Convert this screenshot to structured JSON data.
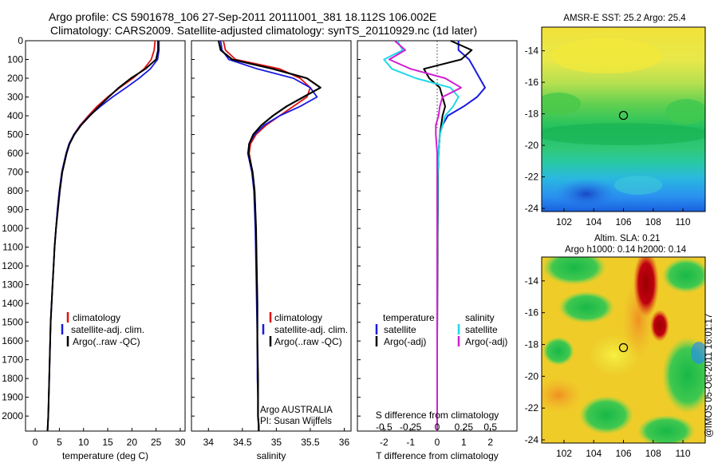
{
  "header": {
    "title_line1": "Argo profile: CS 5901678_106 27-Sep-2011 20111001_381 18.112S 106.002E",
    "title_line2": "Climatology: CARS2009. Satellite-adjusted climatology: synTS_20110929.nc (1d later)"
  },
  "colors": {
    "climatology": "#e01010",
    "satellite": "#1a1ae0",
    "argo": "#000000",
    "satellite_salinity": "#20d8e8",
    "argo_salinity_adj": "#d020d0"
  },
  "chart_data": [
    {
      "type": "line",
      "name": "temperature-profile",
      "xlabel": "temperature (deg C)",
      "ylabel": "",
      "xlim": [
        -2,
        31
      ],
      "ylim": [
        2080,
        0
      ],
      "xticks": [
        0,
        5,
        10,
        15,
        20,
        25,
        30
      ],
      "yticks": [
        0,
        100,
        200,
        300,
        400,
        500,
        600,
        700,
        800,
        900,
        1000,
        1100,
        1200,
        1300,
        1400,
        1500,
        1600,
        1700,
        1800,
        1900,
        2000
      ],
      "legend_labels": [
        "climatology",
        "satellite-adj. clim.",
        "Argo(..raw -QC)"
      ],
      "series": [
        {
          "name": "climatology",
          "color": "#e01010",
          "x": [
            24.8,
            24.6,
            24.0,
            22.5,
            20.2,
            17.5,
            15.0,
            12.8,
            11.0,
            9.3,
            8.0,
            7.0,
            6.4,
            5.5,
            5.0,
            4.6,
            4.3,
            4.0,
            3.8,
            3.6,
            3.4,
            3.2,
            3.1,
            3.0,
            2.9,
            2.8,
            2.75,
            2.7,
            2.6,
            2.55
          ],
          "depth": [
            0,
            50,
            100,
            150,
            200,
            250,
            300,
            350,
            400,
            450,
            500,
            550,
            600,
            700,
            800,
            900,
            1000,
            1100,
            1200,
            1300,
            1400,
            1500,
            1600,
            1700,
            1800,
            1900,
            1950,
            2000,
            2050,
            2080
          ]
        },
        {
          "name": "satellite",
          "color": "#1a1ae0",
          "x": [
            25.6,
            25.6,
            25.3,
            23.8,
            21.5,
            18.8,
            16.0,
            13.5,
            11.2,
            9.4,
            8.0,
            7.0,
            6.4,
            5.5,
            5.0,
            4.6,
            4.3,
            4.0,
            3.8,
            3.6,
            3.4,
            3.2,
            3.1,
            3.0,
            2.9,
            2.8,
            2.75,
            2.7,
            2.6,
            2.55
          ],
          "depth": [
            0,
            50,
            100,
            150,
            200,
            250,
            300,
            350,
            400,
            450,
            500,
            550,
            600,
            700,
            800,
            900,
            1000,
            1100,
            1200,
            1300,
            1400,
            1500,
            1600,
            1700,
            1800,
            1900,
            1950,
            2000,
            2050,
            2080
          ]
        },
        {
          "name": "argo",
          "color": "#000000",
          "x": [
            25.4,
            25.4,
            25.0,
            22.8,
            19.8,
            17.3,
            15.2,
            13.2,
            11.3,
            9.5,
            8.1,
            7.1,
            6.5,
            5.6,
            5.1,
            4.7,
            4.3,
            4.0,
            3.8,
            3.6,
            3.4,
            3.2,
            3.1,
            3.0,
            2.9,
            2.8,
            2.75,
            2.7,
            2.6,
            2.55
          ],
          "depth": [
            0,
            50,
            100,
            150,
            200,
            250,
            300,
            350,
            400,
            450,
            500,
            550,
            600,
            700,
            800,
            900,
            1000,
            1100,
            1200,
            1300,
            1400,
            1500,
            1600,
            1700,
            1800,
            1900,
            1950,
            2000,
            2050,
            2080
          ]
        }
      ]
    },
    {
      "type": "line",
      "name": "salinity-profile",
      "xlabel": "salinity",
      "ylabel": "",
      "xlim": [
        33.75,
        36.1
      ],
      "ylim": [
        2080,
        0
      ],
      "xticks": [
        34,
        34.5,
        35,
        35.5,
        36
      ],
      "legend_labels": [
        "climatology",
        "satellite-adj. clim.",
        "Argo(..raw -QC)"
      ],
      "annotation": [
        "Argo AUSTRALIA",
        "PI: Susan Wijffels"
      ],
      "series": [
        {
          "name": "climatology",
          "color": "#e01010",
          "x": [
            34.22,
            34.25,
            34.4,
            35.05,
            35.35,
            35.5,
            35.45,
            35.25,
            35.05,
            34.85,
            34.7,
            34.62,
            34.6,
            34.65,
            34.68,
            34.7,
            34.71,
            34.72,
            34.72,
            34.73,
            34.73,
            34.73,
            34.74,
            34.74
          ],
          "depth": [
            0,
            50,
            100,
            150,
            200,
            250,
            300,
            350,
            400,
            450,
            500,
            550,
            600,
            700,
            800,
            1000,
            1200,
            1400,
            1600,
            1800,
            1900,
            2000,
            2050,
            2080
          ]
        },
        {
          "name": "satellite",
          "color": "#1a1ae0",
          "x": [
            34.18,
            34.2,
            34.3,
            34.72,
            35.25,
            35.5,
            35.6,
            35.35,
            35.05,
            34.82,
            34.68,
            34.6,
            34.58,
            34.64,
            34.67,
            34.69,
            34.7,
            34.71,
            34.72,
            34.72,
            34.73,
            34.73,
            34.74,
            34.74
          ],
          "depth": [
            0,
            50,
            100,
            150,
            200,
            250,
            300,
            350,
            400,
            450,
            500,
            550,
            600,
            700,
            800,
            1000,
            1200,
            1400,
            1600,
            1800,
            1900,
            2000,
            2050,
            2080
          ]
        },
        {
          "name": "argo",
          "color": "#000000",
          "x": [
            34.15,
            34.18,
            34.35,
            34.95,
            35.45,
            35.65,
            35.4,
            35.15,
            34.95,
            34.78,
            34.66,
            34.6,
            34.59,
            34.65,
            34.68,
            34.7,
            34.71,
            34.72,
            34.72,
            34.73,
            34.73,
            34.73,
            34.74,
            34.74
          ],
          "depth": [
            0,
            50,
            100,
            150,
            200,
            250,
            300,
            350,
            400,
            450,
            500,
            550,
            600,
            700,
            800,
            1000,
            1200,
            1400,
            1600,
            1800,
            1900,
            2000,
            2050,
            2080
          ]
        }
      ]
    },
    {
      "type": "line",
      "name": "difference-profile",
      "xlabel": "T difference from climatology",
      "xlabel_top": "S difference from climatology",
      "xticks_T": [
        -2,
        -1,
        0,
        1,
        2
      ],
      "xticks_S": [
        -0.5,
        -0.25,
        0,
        0.25,
        0.5
      ],
      "xlim_T": [
        -3,
        3
      ],
      "ylim": [
        2080,
        0
      ],
      "legend": {
        "temperature_heading": "temperature",
        "salinity_heading": "salinity",
        "temperature_items": [
          "satellite",
          "Argo(-adj)"
        ],
        "salinity_items": [
          "satellite",
          "Argo(-adj)"
        ]
      },
      "series": [
        {
          "name": "T satellite",
          "color": "#1a1ae0",
          "x": [
            0.8,
            0.8,
            1.2,
            1.4,
            1.6,
            1.8,
            1.5,
            1.0,
            0.4,
            0.2,
            0.1,
            0.05,
            0.03,
            0.02,
            0.01,
            0.0,
            0.0
          ],
          "depth": [
            0,
            50,
            100,
            150,
            200,
            250,
            300,
            350,
            400,
            450,
            500,
            600,
            700,
            900,
            1200,
            1600,
            2080
          ]
        },
        {
          "name": "T Argo",
          "color": "#000000",
          "x": [
            0.5,
            1.3,
            0.9,
            -0.5,
            -0.3,
            0.1,
            0.2,
            0.3,
            0.2,
            0.15,
            0.1,
            0.05,
            0.03,
            0.02,
            0.01,
            0.0,
            0.0
          ],
          "depth": [
            0,
            50,
            100,
            150,
            200,
            250,
            300,
            350,
            400,
            450,
            500,
            600,
            700,
            900,
            1200,
            1600,
            2080
          ]
        },
        {
          "name": "S satellite",
          "color": "#20d8e8",
          "x": [
            -1.5,
            -1.3,
            -2.0,
            -1.7,
            -0.8,
            0.5,
            0.8,
            0.6,
            0.3,
            0.2,
            0.1,
            0.05,
            0.02,
            0.01,
            0.0,
            0.0,
            0.0
          ],
          "depth": [
            0,
            50,
            100,
            150,
            200,
            250,
            300,
            350,
            400,
            450,
            500,
            600,
            700,
            900,
            1200,
            1600,
            2080
          ]
        },
        {
          "name": "S Argo",
          "color": "#d020d0",
          "x": [
            -1.6,
            -1.2,
            -1.8,
            -1.0,
            0.3,
            0.9,
            0.2,
            0.1,
            0.05,
            -0.05,
            -0.05,
            0.0,
            0.0,
            0.0,
            0.0,
            0.0,
            0.0
          ],
          "depth": [
            0,
            50,
            100,
            150,
            200,
            250,
            300,
            350,
            400,
            450,
            500,
            600,
            700,
            900,
            1200,
            1600,
            2080
          ]
        }
      ]
    },
    {
      "type": "heatmap",
      "name": "sst-map",
      "title": "AMSR-E SST: 25.2 Argo: 25.4",
      "xlim": [
        100.5,
        111.5
      ],
      "ylim": [
        -24.2,
        -12.5
      ],
      "xticks": [
        102,
        104,
        106,
        108,
        110
      ],
      "yticks": [
        -14,
        -16,
        -18,
        -20,
        -22,
        -24
      ],
      "marker": {
        "lon": 106.0,
        "lat": -18.1
      }
    },
    {
      "type": "heatmap",
      "name": "sla-map",
      "title_line1": "Altim. SLA: 0.21",
      "title_line2": "Argo h1000: 0.14 h2000: 0.14",
      "xlim": [
        100.5,
        111.5
      ],
      "ylim": [
        -24.2,
        -12.5
      ],
      "xticks": [
        102,
        104,
        106,
        108,
        110
      ],
      "yticks": [
        -14,
        -16,
        -18,
        -20,
        -22,
        -24
      ],
      "marker": {
        "lon": 106.0,
        "lat": -18.2
      }
    }
  ],
  "credit": "@IMOS 05-Oct-2011 16:01:17"
}
